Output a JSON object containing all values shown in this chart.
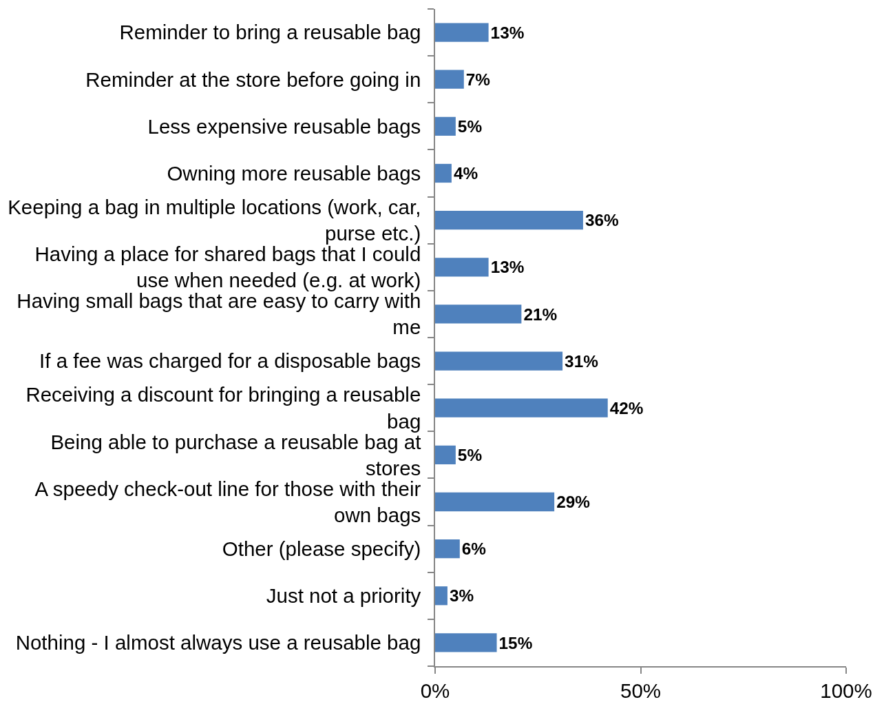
{
  "chart_data": {
    "type": "bar",
    "orientation": "horizontal",
    "categories": [
      "Reminder to bring a reusable bag",
      "Reminder at the store before going in",
      "Less expensive reusable bags",
      "Owning more reusable bags",
      "Keeping a bag in multiple locations (work, car, purse etc.)",
      "Having a place for shared bags that I could use when needed (e.g. at work)",
      "Having small bags that are easy to carry with me",
      "If a fee was charged for a disposable bags",
      "Receiving a discount for bringing a reusable bag",
      "Being able to purchase a reusable bag at stores",
      "A speedy check-out line for those with their own bags",
      "Other (please specify)",
      "Just not a priority",
      "Nothing - I almost always use a reusable bag"
    ],
    "values": [
      13,
      7,
      5,
      4,
      36,
      13,
      21,
      31,
      42,
      5,
      29,
      6,
      3,
      15
    ],
    "value_labels": [
      "13%",
      "7%",
      "5%",
      "4%",
      "36%",
      "13%",
      "21%",
      "31%",
      "42%",
      "5%",
      "29%",
      "6%",
      "3%",
      "15%"
    ],
    "color": "#4f81bd",
    "xlim": [
      0,
      100
    ],
    "xticks": [
      {
        "value": 0,
        "label": "0%"
      },
      {
        "value": 50,
        "label": "50%"
      },
      {
        "value": 100,
        "label": "100%"
      }
    ]
  }
}
